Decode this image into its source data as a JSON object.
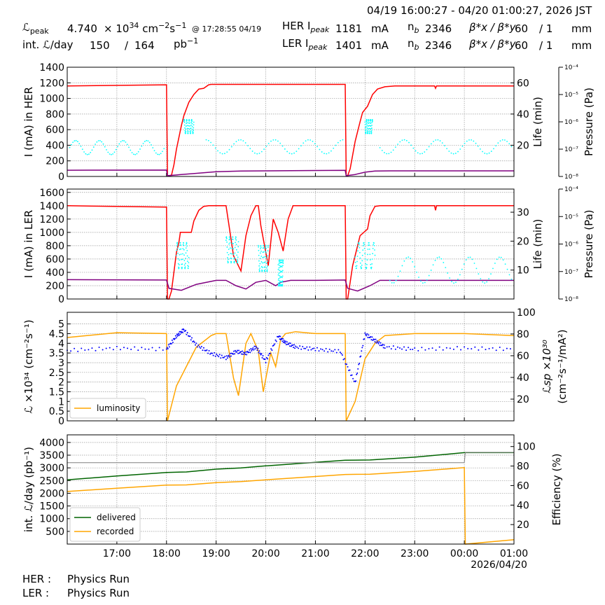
{
  "header": {
    "time_range": "04/19 16:00:27 - 04/20 01:00:27, 2026 JST",
    "lpeak_label": "ℒ",
    "lpeak_sub": "peak",
    "lpeak_value": "4.740",
    "lpeak_unit_pre": "× 10",
    "lpeak_exp": "34",
    "lpeak_unit_mid": " cm",
    "lpeak_unit_exp1": "−2",
    "lpeak_unit_s": "s",
    "lpeak_unit_exp2": "−1",
    "lpeak_time": "@ 17:28:55 04/19",
    "intl_label": "int. ℒ/day",
    "intl_value": "150",
    "intl_sep": "/",
    "intl_value2": "164",
    "intl_unit": "pb",
    "intl_unit_exp": "−1",
    "her_label": "HER I",
    "her_sub": "peak",
    "her_value": "1181",
    "her_unit": "mA",
    "ler_label": "LER I",
    "ler_sub": "peak",
    "ler_value": "1401",
    "ler_unit": "mA",
    "nb_label": "n",
    "nb_sub": "b",
    "nb_her": "2346",
    "nb_ler": "2346",
    "beta_label": "β*x / β*y",
    "beta_her_x": "60",
    "beta_her_y": "/ 1",
    "beta_ler_x": "60",
    "beta_ler_y": "/ 1",
    "beta_unit": "mm"
  },
  "footer": {
    "her_label": "HER :",
    "her_status": "Physics Run",
    "ler_label": "LER :",
    "ler_status": "Physics Run"
  },
  "colors": {
    "current": "#ff0000",
    "life": "#00ffff",
    "pressure": "#800080",
    "luminosity": "#ffa500",
    "specific": "#0000ff",
    "delivered": "#006400",
    "recorded": "#ffa500",
    "efficiency": "#808080"
  },
  "chart_data": [
    {
      "type": "line",
      "ylabel": "I (mA) in HER",
      "ylabel_right": "Life (min)",
      "ylabel_right2": "Pressure (Pa)",
      "ylim": [
        0,
        1400
      ],
      "yticks": [
        0,
        200,
        400,
        600,
        800,
        1000,
        1200,
        1400
      ],
      "ylim_right": [
        0,
        70
      ],
      "yticks_right": [
        20,
        40,
        60
      ],
      "pressure_ticks": [
        "10⁻⁴",
        "10⁻⁵",
        "10⁻⁶",
        "10⁻⁷",
        "10⁻⁸"
      ],
      "xlim": [
        16.0,
        25.0
      ],
      "series": [
        {
          "key": "current",
          "x": [
            16.0,
            18.0,
            18.02,
            18.05,
            18.1,
            18.15,
            18.2,
            18.3,
            18.35,
            18.45,
            18.55,
            18.65,
            18.75,
            18.85,
            18.9,
            19.0,
            19.5,
            20.0,
            20.5,
            21.0,
            21.6,
            21.62,
            21.65,
            21.7,
            21.8,
            21.9,
            21.95,
            22.05,
            22.15,
            22.25,
            22.4,
            22.6,
            23.0,
            23.4,
            23.42,
            23.44,
            24.0,
            24.5,
            25.0
          ],
          "y": [
            1160,
            1175,
            10,
            10,
            15,
            150,
            350,
            650,
            780,
            950,
            1050,
            1120,
            1130,
            1175,
            1180,
            1180,
            1180,
            1180,
            1180,
            1180,
            1180,
            10,
            10,
            100,
            450,
            700,
            820,
            900,
            1050,
            1120,
            1150,
            1160,
            1160,
            1160,
            1130,
            1160,
            1160,
            1160,
            1160
          ]
        },
        {
          "key": "pressure",
          "x": [
            16.0,
            18.0,
            18.02,
            18.5,
            19.0,
            19.5,
            20.0,
            20.5,
            21.0,
            21.6,
            21.62,
            21.8,
            22.0,
            22.2,
            22.5,
            23.0,
            24.0,
            25.0
          ],
          "y": [
            80,
            82,
            10,
            35,
            60,
            70,
            72,
            74,
            76,
            78,
            10,
            25,
            55,
            70,
            72,
            72,
            72,
            72
          ]
        },
        {
          "key": "life",
          "scatter": true,
          "segments": [
            [
              16.05,
              17.95,
              18.5
            ],
            [
              18.35,
              18.55,
              32
            ],
            [
              18.8,
              21.55,
              19
            ],
            [
              22.0,
              22.15,
              32
            ],
            [
              22.3,
              24.95,
              19
            ]
          ]
        }
      ]
    },
    {
      "type": "line",
      "ylabel": "I (mA) in LER",
      "ylabel_right": "Life (min)",
      "ylabel_right2": "Pressure (Pa)",
      "ylim": [
        0,
        1650
      ],
      "yticks": [
        0,
        200,
        400,
        600,
        800,
        1000,
        1200,
        1400,
        1600
      ],
      "ylim_right": [
        0,
        38
      ],
      "yticks_right": [
        10,
        20,
        30
      ],
      "pressure_ticks": [
        "10⁻⁴",
        "10⁻⁵",
        "10⁻⁶",
        "10⁻⁷",
        "10⁻⁸"
      ],
      "xlim": [
        16.0,
        25.0
      ],
      "series": [
        {
          "key": "current",
          "x": [
            16.0,
            18.0,
            18.02,
            18.05,
            18.1,
            18.2,
            18.25,
            18.28,
            18.35,
            18.5,
            18.55,
            18.65,
            18.75,
            18.85,
            19.0,
            19.2,
            19.25,
            19.35,
            19.5,
            19.6,
            19.7,
            19.8,
            19.85,
            19.9,
            20.05,
            20.15,
            20.25,
            20.35,
            20.45,
            20.55,
            20.7,
            21.0,
            21.6,
            21.62,
            21.65,
            21.75,
            21.85,
            21.9,
            22.05,
            22.1,
            22.2,
            22.3,
            23.0,
            23.4,
            23.42,
            23.44,
            24.0,
            25.0
          ],
          "y": [
            1400,
            1380,
            0,
            0,
            120,
            700,
            850,
            1000,
            1000,
            1000,
            1170,
            1330,
            1390,
            1400,
            1400,
            1400,
            1150,
            650,
            420,
            950,
            1250,
            1400,
            1400,
            1100,
            500,
            1200,
            1000,
            720,
            1200,
            1400,
            1400,
            1400,
            1400,
            0,
            0,
            500,
            800,
            950,
            1050,
            1250,
            1390,
            1400,
            1400,
            1400,
            1330,
            1400,
            1400,
            1400
          ]
        },
        {
          "key": "pressure",
          "x": [
            16.0,
            18.0,
            18.05,
            18.3,
            18.6,
            19.0,
            19.2,
            19.4,
            19.6,
            19.8,
            20.0,
            20.2,
            20.3,
            20.5,
            21.0,
            21.6,
            21.65,
            21.85,
            22.1,
            22.3,
            25.0
          ],
          "y": [
            290,
            285,
            160,
            130,
            220,
            280,
            280,
            200,
            150,
            250,
            280,
            200,
            250,
            280,
            280,
            285,
            160,
            120,
            200,
            280,
            280
          ]
        },
        {
          "key": "life",
          "scatter": true,
          "segments": [
            [
              18.2,
              18.45,
              15
            ],
            [
              19.2,
              19.45,
              17
            ],
            [
              19.85,
              20.05,
              14
            ],
            [
              20.25,
              20.35,
              9
            ],
            [
              21.8,
              22.2,
              15
            ],
            [
              22.5,
              24.95,
              10
            ]
          ]
        }
      ]
    },
    {
      "type": "line",
      "ylabel": "ℒ ×10³⁴ (cm⁻²s⁻¹)",
      "ylabel_right": "ℒsp ×10³⁰",
      "ylabel_right_b": "(cm⁻²s⁻¹/mA²)",
      "ylim": [
        0,
        5.6
      ],
      "yticks": [
        0,
        0.5,
        1,
        1.5,
        2,
        2.5,
        3,
        3.5,
        4,
        4.5,
        5
      ],
      "ylim_right": [
        0,
        100
      ],
      "yticks_right": [
        20,
        40,
        60,
        80,
        100
      ],
      "xlim": [
        16.0,
        25.0
      ],
      "legend": "lower-left",
      "series": [
        {
          "key": "luminosity",
          "name": "luminosity",
          "x": [
            16.0,
            17.0,
            18.0,
            18.02,
            18.2,
            18.4,
            18.6,
            18.9,
            19.0,
            19.2,
            19.35,
            19.45,
            19.6,
            19.7,
            19.85,
            19.95,
            20.1,
            20.2,
            20.3,
            20.4,
            20.6,
            21.0,
            21.6,
            21.62,
            21.8,
            22.0,
            22.2,
            22.4,
            23.0,
            24.0,
            25.0
          ],
          "y": [
            4.3,
            4.55,
            4.5,
            0,
            1.8,
            2.8,
            3.8,
            4.4,
            4.5,
            4.5,
            2.2,
            1.3,
            4.0,
            4.5,
            3.6,
            1.5,
            3.5,
            2.8,
            4.2,
            4.5,
            4.6,
            4.5,
            4.5,
            0,
            1.0,
            3.2,
            4.0,
            4.4,
            4.5,
            4.5,
            4.4
          ]
        },
        {
          "key": "specific",
          "scatter": true,
          "x": [
            16.0,
            17.0,
            18.0,
            18.2,
            18.35,
            18.6,
            18.9,
            19.2,
            19.4,
            19.6,
            19.8,
            20.0,
            20.25,
            20.4,
            20.6,
            21.0,
            21.5,
            21.8,
            22.0,
            22.2,
            22.4,
            23.0,
            24.0,
            25.0
          ],
          "y": [
            65,
            67,
            66,
            78,
            84,
            70,
            62,
            58,
            64,
            62,
            68,
            55,
            78,
            72,
            68,
            66,
            64,
            35,
            80,
            74,
            68,
            66,
            67,
            66
          ]
        }
      ]
    },
    {
      "type": "line",
      "ylabel": "int. ℒ/day (pb⁻¹)",
      "ylabel_right": "Efficiency (%)",
      "ylim": [
        0,
        4300
      ],
      "yticks": [
        500,
        1000,
        1500,
        2000,
        2500,
        3000,
        3500,
        4000
      ],
      "ylim_right": [
        0,
        112
      ],
      "yticks_right": [
        20,
        40,
        60,
        80,
        100
      ],
      "xlim": [
        16.0,
        25.0
      ],
      "xticks": [
        "17:00",
        "18:00",
        "19:00",
        "20:00",
        "21:00",
        "22:00",
        "23:00",
        "00:00",
        "01:00"
      ],
      "xlabel_date": "2026/04/20",
      "legend": "lower-left",
      "series": [
        {
          "key": "delivered",
          "name": "delivered",
          "x": [
            16.0,
            17.0,
            18.0,
            18.4,
            19.0,
            19.5,
            20.0,
            21.0,
            21.6,
            22.1,
            23.0,
            24.0,
            24.02,
            25.0
          ],
          "y": [
            2530,
            2680,
            2820,
            2840,
            2950,
            3000,
            3080,
            3220,
            3300,
            3310,
            3420,
            3600,
            3600,
            3600
          ]
        },
        {
          "key": "recorded",
          "name": "recorded",
          "x": [
            16.0,
            17.0,
            18.0,
            18.4,
            19.0,
            19.5,
            20.0,
            21.0,
            21.6,
            22.1,
            23.0,
            24.0,
            24.02,
            25.0
          ],
          "y": [
            2070,
            2200,
            2320,
            2330,
            2420,
            2460,
            2530,
            2660,
            2740,
            2750,
            2860,
            3010,
            0,
            170
          ]
        },
        {
          "key": "efficiency",
          "x": [
            16.0,
            24.0,
            24.02,
            25.0
          ],
          "y": [
            83.5,
            83.5,
            94,
            94
          ]
        }
      ]
    }
  ]
}
